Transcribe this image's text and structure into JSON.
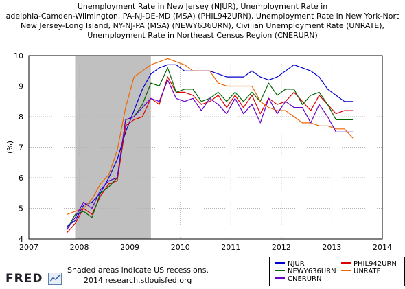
{
  "title_lines": [
    "Unemployment Rate in New Jersey (NJUR), Unemployment Rate in",
    "adelphia-Camden-Wilmington, PA-NJ-DE-MD (MSA) (PHIL942URN), Unemployment Rate in New York-Nort",
    "New Jersey-Long Island, NY-NJ-PA (MSA) (NEWY636URN), Civilian Unemployment Rate (UNRATE),",
    "Unemployment Rate in Northeast Census Region (CNERURN)"
  ],
  "footer": {
    "brand": "FRED",
    "note_line1": "Shaded areas indicate US recessions.",
    "note_line2": "2014 research.stlouisfed.org"
  },
  "chart_data": {
    "type": "line",
    "ylabel": "(%)",
    "xlim": [
      2007,
      2014
    ],
    "ylim": [
      4,
      10
    ],
    "x_ticks": [
      "2007",
      "2008",
      "2009",
      "2010",
      "2011",
      "2012",
      "2013",
      "2014"
    ],
    "y_ticks": [
      "4",
      "5",
      "6",
      "7",
      "8",
      "9",
      "10"
    ],
    "grid": true,
    "recession": {
      "start": 2007.917,
      "end": 2009.417,
      "color": "#c0c0c0"
    },
    "legend_position": "bottom-right",
    "x": [
      2007.75,
      2007.917,
      2008.083,
      2008.25,
      2008.417,
      2008.583,
      2008.75,
      2008.917,
      2009.083,
      2009.25,
      2009.417,
      2009.583,
      2009.75,
      2009.917,
      2010.083,
      2010.25,
      2010.417,
      2010.583,
      2010.75,
      2010.917,
      2011.083,
      2011.25,
      2011.417,
      2011.583,
      2011.75,
      2011.917,
      2012.083,
      2012.25,
      2012.417,
      2012.583,
      2012.75,
      2012.917,
      2013.083,
      2013.25,
      2013.417
    ],
    "series": [
      {
        "name": "NJUR",
        "color": "#0000cc",
        "values": [
          4.4,
          4.6,
          5.1,
          5.2,
          5.5,
          6.0,
          6.6,
          7.5,
          8.2,
          8.9,
          9.4,
          9.6,
          9.7,
          9.7,
          9.5,
          9.5,
          9.5,
          9.5,
          9.4,
          9.3,
          9.3,
          9.3,
          9.5,
          9.3,
          9.2,
          9.3,
          9.5,
          9.7,
          9.6,
          9.5,
          9.3,
          8.9,
          8.7,
          8.5,
          8.5
        ]
      },
      {
        "name": "PHIL942URN",
        "color": "#dd0000",
        "values": [
          4.2,
          4.5,
          5.0,
          4.8,
          5.4,
          5.8,
          5.9,
          7.7,
          7.9,
          8.0,
          8.6,
          8.4,
          9.3,
          8.8,
          8.8,
          8.7,
          8.4,
          8.5,
          8.7,
          8.3,
          8.7,
          8.3,
          8.7,
          8.1,
          8.6,
          8.4,
          8.5,
          8.8,
          8.5,
          8.2,
          8.7,
          8.4,
          8.1,
          8.2,
          8.2
        ]
      },
      {
        "name": "NEWY636URN",
        "color": "#006600",
        "values": [
          4.3,
          4.8,
          4.9,
          4.7,
          5.5,
          5.7,
          6.0,
          7.9,
          8.0,
          8.4,
          9.1,
          9.0,
          9.6,
          8.8,
          8.9,
          8.9,
          8.5,
          8.6,
          8.8,
          8.5,
          8.8,
          8.5,
          8.8,
          8.5,
          9.1,
          8.7,
          8.9,
          8.9,
          8.4,
          8.7,
          8.8,
          8.4,
          7.9,
          7.9,
          7.9
        ]
      },
      {
        "name": "UNRATE",
        "color": "#ee6600",
        "values": [
          4.8,
          4.9,
          5.0,
          5.3,
          5.8,
          6.1,
          6.9,
          8.3,
          9.3,
          9.5,
          9.7,
          9.8,
          9.9,
          9.8,
          9.7,
          9.5,
          9.5,
          9.5,
          9.1,
          9.0,
          9.0,
          9.0,
          9.0,
          8.5,
          8.3,
          8.2,
          8.2,
          8.0,
          7.8,
          7.8,
          7.7,
          7.7,
          7.6,
          7.6,
          7.3
        ]
      },
      {
        "name": "CNERURN",
        "color": "#6600cc",
        "values": [
          4.3,
          4.7,
          5.2,
          5.0,
          5.6,
          5.9,
          6.0,
          7.9,
          8.0,
          8.3,
          8.6,
          8.5,
          9.2,
          8.6,
          8.5,
          8.6,
          8.2,
          8.6,
          8.4,
          8.1,
          8.6,
          8.1,
          8.4,
          7.8,
          8.6,
          8.1,
          8.5,
          8.3,
          8.3,
          7.8,
          8.4,
          8.0,
          7.5,
          7.5,
          7.5
        ]
      }
    ]
  }
}
